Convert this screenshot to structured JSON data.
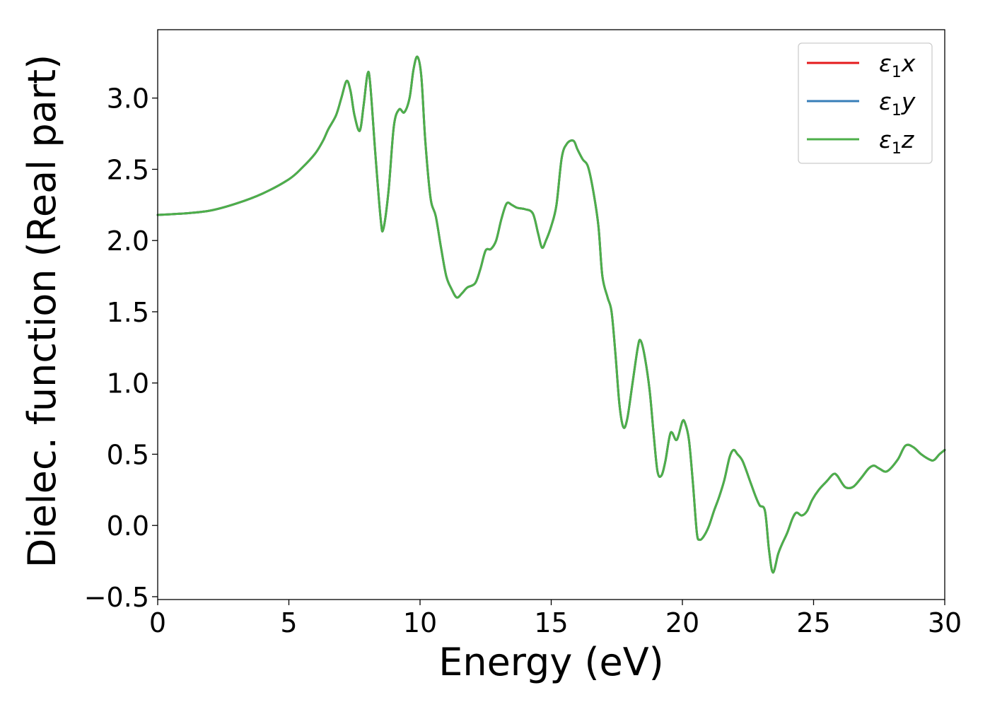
{
  "chart_data": {
    "type": "line",
    "xlabel": "Energy (eV)",
    "ylabel": "Dielec. function (Real part)",
    "xlim": [
      0,
      30
    ],
    "ylim": [
      -0.52,
      3.48
    ],
    "xticks": [
      0,
      5,
      10,
      15,
      20,
      25,
      30
    ],
    "yticks": [
      -0.5,
      0.0,
      0.5,
      1.0,
      1.5,
      2.0,
      2.5,
      3.0
    ],
    "xtick_labels": [
      "0",
      "5",
      "10",
      "15",
      "20",
      "25",
      "30"
    ],
    "ytick_labels": [
      "−0.5",
      "0.0",
      "0.5",
      "1.0",
      "1.5",
      "2.0",
      "2.5",
      "3.0"
    ],
    "grid": false,
    "legend_position": "top-right",
    "series_points": [
      [
        0,
        2.18
      ],
      [
        1,
        2.19
      ],
      [
        2,
        2.21
      ],
      [
        3,
        2.26
      ],
      [
        4,
        2.33
      ],
      [
        5,
        2.43
      ],
      [
        5.5,
        2.51
      ],
      [
        6,
        2.61
      ],
      [
        6.3,
        2.7
      ],
      [
        6.5,
        2.78
      ],
      [
        6.8,
        2.88
      ],
      [
        7.0,
        3.0
      ],
      [
        7.2,
        3.12
      ],
      [
        7.35,
        3.05
      ],
      [
        7.5,
        2.88
      ],
      [
        7.7,
        2.77
      ],
      [
        7.85,
        2.95
      ],
      [
        8.0,
        3.17
      ],
      [
        8.1,
        3.1
      ],
      [
        8.3,
        2.6
      ],
      [
        8.5,
        2.15
      ],
      [
        8.6,
        2.08
      ],
      [
        8.8,
        2.35
      ],
      [
        9.0,
        2.8
      ],
      [
        9.2,
        2.92
      ],
      [
        9.4,
        2.9
      ],
      [
        9.6,
        3.0
      ],
      [
        9.75,
        3.2
      ],
      [
        9.9,
        3.29
      ],
      [
        10.05,
        3.15
      ],
      [
        10.2,
        2.7
      ],
      [
        10.4,
        2.3
      ],
      [
        10.6,
        2.17
      ],
      [
        10.8,
        1.95
      ],
      [
        11.0,
        1.75
      ],
      [
        11.2,
        1.66
      ],
      [
        11.4,
        1.6
      ],
      [
        11.6,
        1.63
      ],
      [
        11.8,
        1.67
      ],
      [
        12.1,
        1.7
      ],
      [
        12.3,
        1.8
      ],
      [
        12.5,
        1.93
      ],
      [
        12.7,
        1.94
      ],
      [
        12.9,
        2.0
      ],
      [
        13.1,
        2.15
      ],
      [
        13.3,
        2.26
      ],
      [
        13.5,
        2.25
      ],
      [
        13.7,
        2.23
      ],
      [
        14.0,
        2.22
      ],
      [
        14.3,
        2.19
      ],
      [
        14.5,
        2.05
      ],
      [
        14.65,
        1.95
      ],
      [
        14.8,
        2.0
      ],
      [
        15.0,
        2.1
      ],
      [
        15.2,
        2.25
      ],
      [
        15.4,
        2.58
      ],
      [
        15.6,
        2.68
      ],
      [
        15.85,
        2.7
      ],
      [
        16.0,
        2.64
      ],
      [
        16.2,
        2.57
      ],
      [
        16.4,
        2.52
      ],
      [
        16.6,
        2.35
      ],
      [
        16.8,
        2.1
      ],
      [
        16.95,
        1.75
      ],
      [
        17.15,
        1.6
      ],
      [
        17.3,
        1.5
      ],
      [
        17.45,
        1.2
      ],
      [
        17.6,
        0.85
      ],
      [
        17.75,
        0.69
      ],
      [
        17.9,
        0.75
      ],
      [
        18.1,
        1.0
      ],
      [
        18.3,
        1.25
      ],
      [
        18.4,
        1.3
      ],
      [
        18.55,
        1.2
      ],
      [
        18.75,
        0.95
      ],
      [
        18.9,
        0.65
      ],
      [
        19.05,
        0.38
      ],
      [
        19.2,
        0.35
      ],
      [
        19.35,
        0.45
      ],
      [
        19.55,
        0.65
      ],
      [
        19.75,
        0.6
      ],
      [
        19.85,
        0.63
      ],
      [
        20.0,
        0.73
      ],
      [
        20.1,
        0.72
      ],
      [
        20.25,
        0.6
      ],
      [
        20.4,
        0.3
      ],
      [
        20.55,
        -0.05
      ],
      [
        20.65,
        -0.1
      ],
      [
        20.8,
        -0.08
      ],
      [
        21.0,
        -0.01
      ],
      [
        21.2,
        0.1
      ],
      [
        21.4,
        0.2
      ],
      [
        21.6,
        0.32
      ],
      [
        21.8,
        0.48
      ],
      [
        21.95,
        0.53
      ],
      [
        22.1,
        0.5
      ],
      [
        22.3,
        0.45
      ],
      [
        22.6,
        0.3
      ],
      [
        22.8,
        0.2
      ],
      [
        22.95,
        0.14
      ],
      [
        23.15,
        0.1
      ],
      [
        23.3,
        -0.17
      ],
      [
        23.45,
        -0.33
      ],
      [
        23.65,
        -0.2
      ],
      [
        23.8,
        -0.13
      ],
      [
        24.0,
        -0.05
      ],
      [
        24.2,
        0.05
      ],
      [
        24.35,
        0.09
      ],
      [
        24.55,
        0.07
      ],
      [
        24.75,
        0.1
      ],
      [
        24.95,
        0.18
      ],
      [
        25.2,
        0.25
      ],
      [
        25.5,
        0.31
      ],
      [
        25.75,
        0.36
      ],
      [
        25.9,
        0.35
      ],
      [
        26.2,
        0.27
      ],
      [
        26.5,
        0.27
      ],
      [
        26.8,
        0.33
      ],
      [
        27.1,
        0.4
      ],
      [
        27.3,
        0.42
      ],
      [
        27.5,
        0.4
      ],
      [
        27.8,
        0.38
      ],
      [
        28.2,
        0.46
      ],
      [
        28.5,
        0.56
      ],
      [
        28.8,
        0.55
      ],
      [
        29.1,
        0.5
      ],
      [
        29.45,
        0.46
      ],
      [
        29.6,
        0.46
      ],
      [
        29.8,
        0.5
      ],
      [
        30.0,
        0.53
      ]
    ],
    "series": [
      {
        "name": "x",
        "color": "#e41a1c"
      },
      {
        "name": "y",
        "color": "#377eb8"
      },
      {
        "name": "z",
        "color": "#4daf4a"
      }
    ],
    "legend": [
      {
        "prefix": "ε",
        "sub": "1",
        "suffix": "x",
        "color": "#e41a1c"
      },
      {
        "prefix": "ε",
        "sub": "1",
        "suffix": "y",
        "color": "#377eb8"
      },
      {
        "prefix": "ε",
        "sub": "1",
        "suffix": "z",
        "color": "#4daf4a"
      }
    ]
  }
}
